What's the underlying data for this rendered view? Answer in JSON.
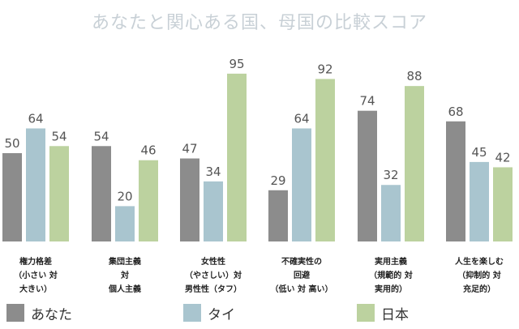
{
  "chart_data": {
    "type": "bar",
    "title": "あなたと関心ある国、母国の比較スコア",
    "categories": [
      [
        "権力格差",
        "（小さい 対",
        "大きい）"
      ],
      [
        "集団主義",
        "対",
        "個人主義"
      ],
      [
        "女性性",
        "（やさしい）対",
        "男性性（タフ）"
      ],
      [
        "不確実性の",
        "回避",
        "（低い 対 高い）"
      ],
      [
        "実用主義",
        "（規範的 対",
        "実用的）"
      ],
      [
        "人生を楽しむ",
        "（抑制的 対",
        "充足的）"
      ]
    ],
    "series": [
      {
        "name": "あなた",
        "color": "#8c8c8c",
        "values": [
          50,
          54,
          47,
          29,
          74,
          68
        ]
      },
      {
        "name": "タイ",
        "color": "#a9c5cf",
        "values": [
          64,
          20,
          34,
          64,
          32,
          45
        ]
      },
      {
        "name": "日本",
        "color": "#bcd29f",
        "values": [
          54,
          46,
          95,
          92,
          88,
          42
        ]
      }
    ],
    "ylim": [
      0,
      100
    ],
    "grid": false,
    "legend_position": "bottom"
  }
}
